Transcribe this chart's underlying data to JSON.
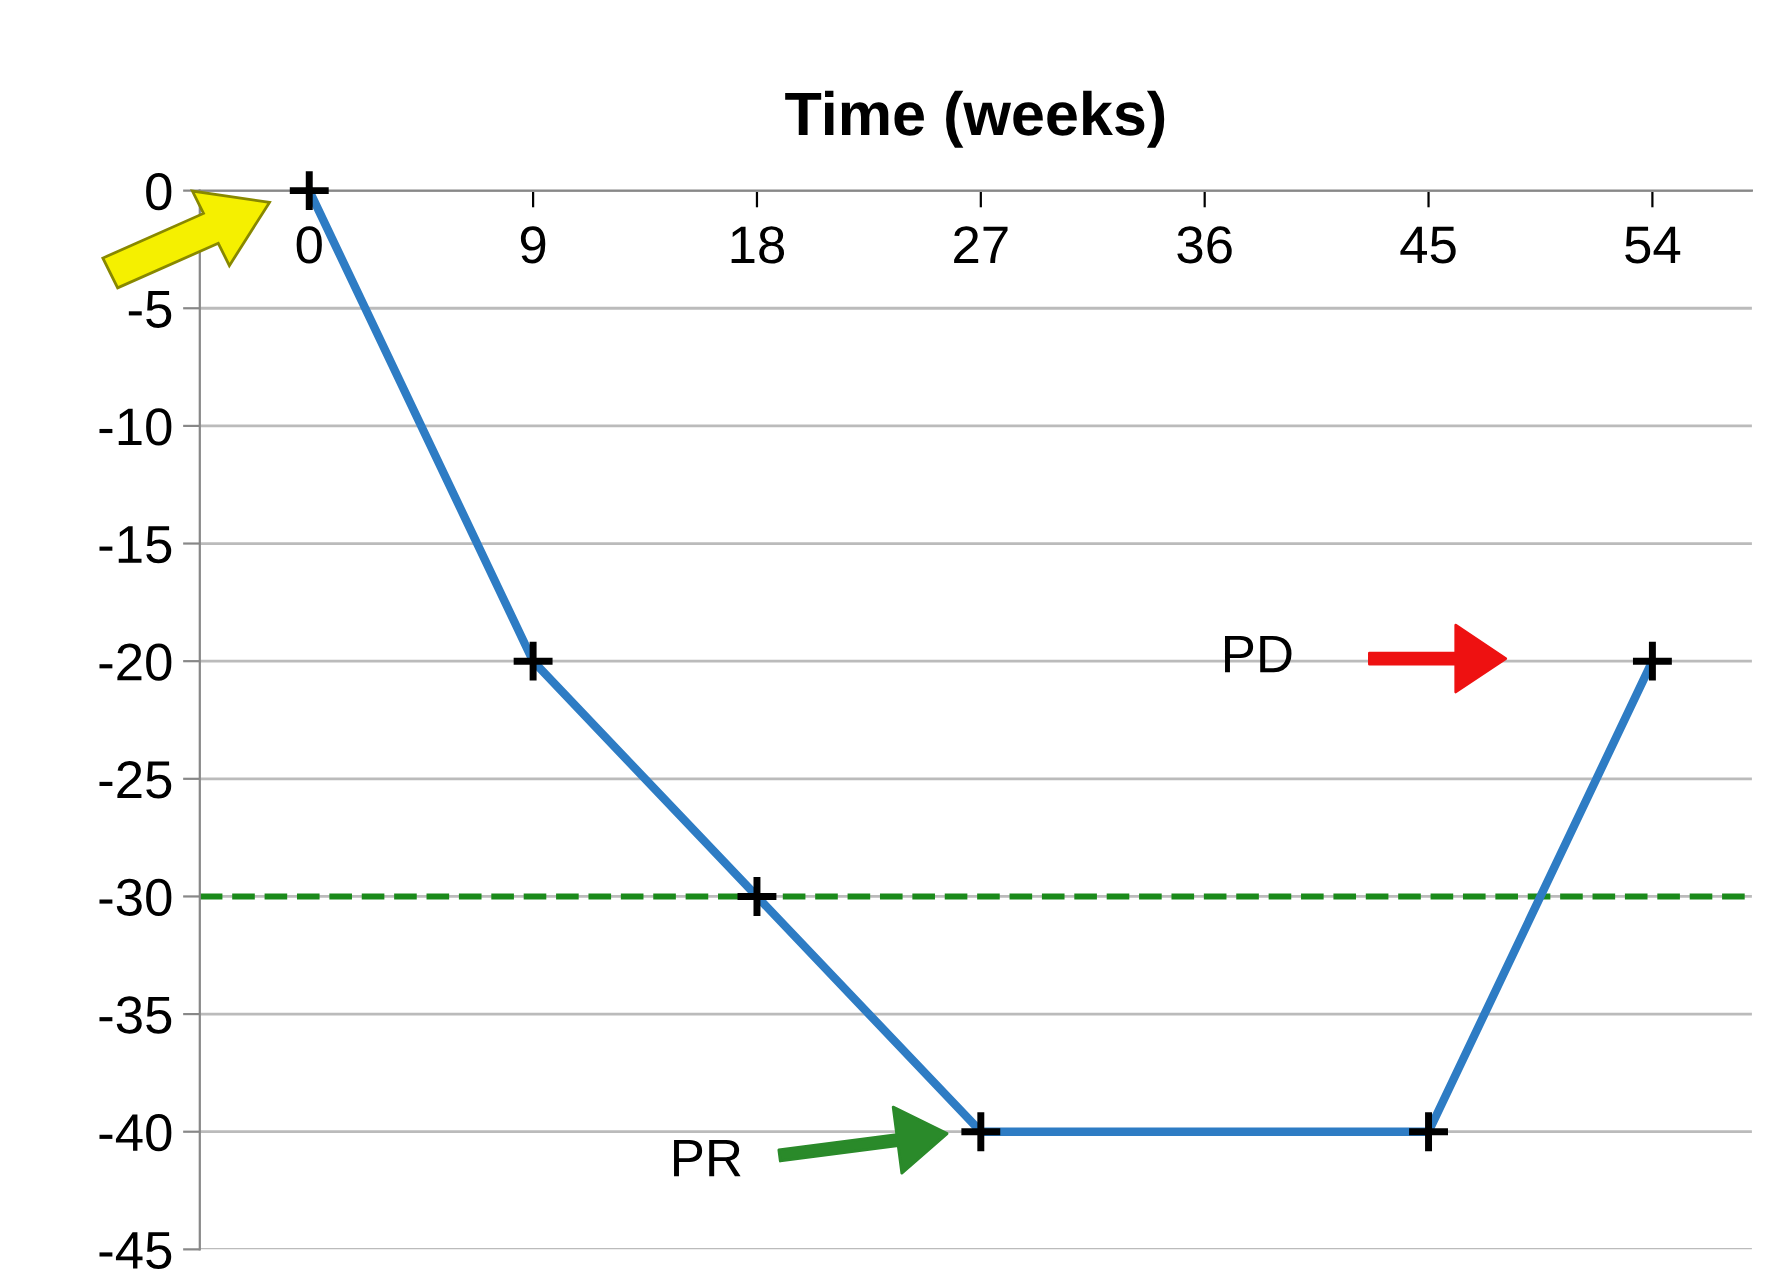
{
  "chart_data": {
    "type": "line",
    "title": "Time (weeks)",
    "x": [
      0,
      9,
      18,
      27,
      45,
      54
    ],
    "series": [
      {
        "color": "#2e7cc4",
        "values": [
          0,
          -20,
          -30,
          -40,
          -40,
          -20
        ]
      }
    ],
    "xlim": [
      -4.4,
      58
    ],
    "xticks": [
      0,
      9,
      18,
      27,
      36,
      45,
      54
    ],
    "ylim": [
      -45,
      0
    ],
    "yticks": [
      0,
      -5,
      -10,
      -15,
      -20,
      -25,
      -30,
      -35,
      -40,
      -45
    ],
    "grid": "y",
    "marker": "cross",
    "ref_lines": [
      {
        "axis": "y",
        "value": -30,
        "color": "#1a8a1a",
        "line_style": "dashed"
      }
    ],
    "annotations": [
      "PR",
      "PD"
    ]
  }
}
